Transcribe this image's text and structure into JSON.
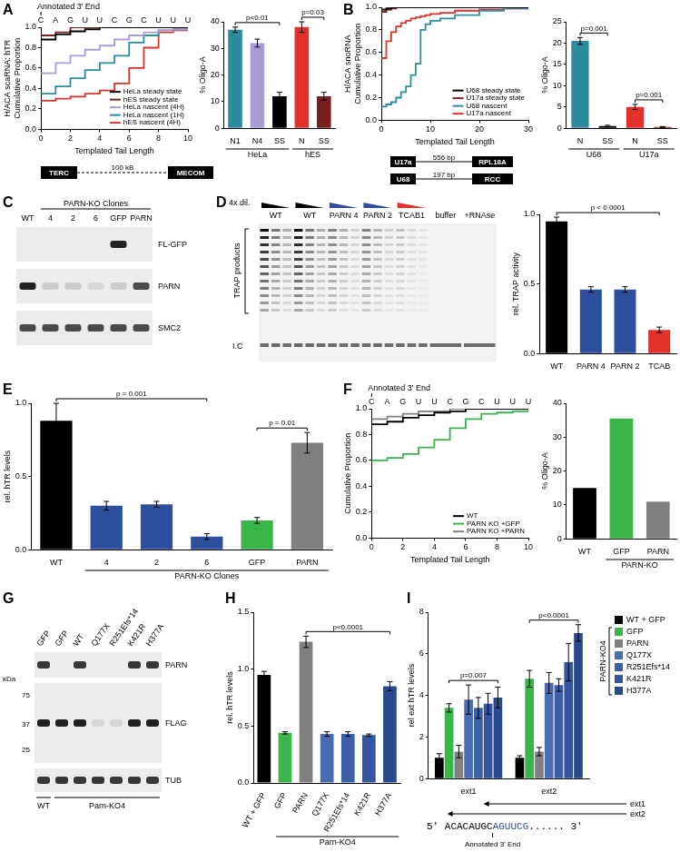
{
  "panel_labels": [
    "A",
    "B",
    "C",
    "D",
    "E",
    "F",
    "G",
    "H",
    "I"
  ],
  "chart_data": [
    {
      "type": "line",
      "xlabel": "Templated Tail Length",
      "ylabel": [
        "H/ACA scaRNA: hTR",
        "Cumulative Proportion"
      ],
      "x": [
        0,
        1,
        2,
        3,
        4,
        5,
        6,
        7,
        8,
        9,
        10
      ],
      "xlim": [
        0,
        10
      ],
      "xticks": [
        0,
        2,
        4,
        6,
        8,
        10
      ],
      "ylim": [
        0,
        1
      ],
      "yticks": [
        {
          "value": 0,
          "label": "0.0"
        },
        0.2,
        0.4,
        0.6,
        0.8,
        {
          "value": 1,
          "label": "1.0"
        }
      ],
      "grid": false,
      "legend": "lower right",
      "line_style": "steps",
      "annotations": {
        "label": "Annotated 3' End",
        "sequence": [
          "C",
          "A",
          "G",
          "U",
          "U",
          "C",
          "G",
          "C",
          "U",
          "U",
          "U"
        ]
      },
      "series": [
        {
          "name": "HeLa steady state",
          "color": "#000000",
          "values": [
            0.88,
            0.93,
            0.96,
            0.98,
            1,
            1,
            1,
            1,
            1,
            1,
            1
          ]
        },
        {
          "name": "hES steady state",
          "color": "#7a1f1f",
          "values": [
            0.92,
            0.95,
            1,
            1,
            1,
            1,
            1,
            1,
            1,
            1,
            1
          ]
        },
        {
          "name": "HeLa nascent (4H)",
          "color": "#a99bd3",
          "values": [
            0.55,
            0.65,
            0.72,
            0.78,
            0.82,
            0.88,
            0.92,
            0.95,
            0.97,
            0.98,
            1
          ]
        },
        {
          "name": "HeLa nascent (1H)",
          "color": "#2b8c9e",
          "values": [
            0.35,
            0.42,
            0.5,
            0.58,
            0.65,
            0.72,
            0.85,
            0.92,
            0.97,
            0.98,
            1
          ]
        },
        {
          "name": "hES nascent (4H)",
          "color": "#e2302b",
          "values": [
            0.28,
            0.3,
            0.32,
            0.35,
            0.38,
            0.45,
            0.6,
            0.8,
            0.95,
            0.97,
            1
          ]
        }
      ]
    },
    {
      "type": "bar",
      "ylabel": "% Oligo-A",
      "categories": [
        "N1",
        "N4",
        "SS",
        "N",
        "SS"
      ],
      "values": [
        37,
        32,
        12,
        38,
        12
      ],
      "errors": [
        1,
        1.5,
        1.5,
        2,
        1.5
      ],
      "colors": [
        "#2b8c9e",
        "#a99bd3",
        "#000000",
        "#e2302b",
        "#7a1f1f"
      ],
      "ylim": [
        0,
        40
      ],
      "yticks": [
        0,
        10,
        20,
        30,
        40
      ],
      "grid": false,
      "groups": [
        {
          "label": "HeLa",
          "from": 0,
          "to": 2
        },
        {
          "label": "hES",
          "from": 3,
          "to": 4
        }
      ],
      "annotations": [
        {
          "text": "p<0.01",
          "from": 0,
          "to": 2
        },
        {
          "text": "p=0.03",
          "from": 3,
          "to": 4
        }
      ]
    },
    {
      "type": "line",
      "xlabel": "Templated Tail Length",
      "ylabel": [
        "H/ACA snoRNA",
        "Cumulative Proportion"
      ],
      "x": [
        0,
        1,
        2,
        3,
        4,
        5,
        6,
        7,
        8,
        9,
        10,
        12,
        15,
        20,
        25,
        30
      ],
      "xlim": [
        0,
        30
      ],
      "xticks": [
        0,
        10,
        20,
        30
      ],
      "ylim": [
        0,
        1
      ],
      "yticks": [
        {
          "value": 0,
          "label": "0.0"
        },
        0.2,
        0.4,
        0.6,
        0.8,
        {
          "value": 1,
          "label": "1.0"
        }
      ],
      "grid": false,
      "legend": "lower right",
      "line_style": "steps",
      "series": [
        {
          "name": "U68 steady state",
          "color": "#000000",
          "values": [
            0.98,
            0.99,
            1,
            1,
            1,
            1,
            1,
            1,
            1,
            1,
            1,
            1,
            1,
            1,
            1,
            1
          ]
        },
        {
          "name": "U17a steady state",
          "color": "#7a1f1f",
          "values": [
            0.96,
            0.98,
            0.99,
            1,
            1,
            1,
            1,
            1,
            1,
            1,
            1,
            1,
            1,
            1,
            1,
            1
          ]
        },
        {
          "name": "U68 nascent",
          "color": "#2b8c9e",
          "values": [
            0.12,
            0.14,
            0.16,
            0.2,
            0.25,
            0.3,
            0.4,
            0.5,
            0.8,
            0.85,
            0.88,
            0.9,
            0.93,
            0.97,
            0.99,
            1
          ]
        },
        {
          "name": "U17a nascent",
          "color": "#e2302b",
          "values": [
            0.55,
            0.7,
            0.78,
            0.83,
            0.86,
            0.88,
            0.9,
            0.91,
            0.92,
            0.93,
            0.94,
            0.95,
            0.97,
            0.98,
            0.99,
            1
          ]
        }
      ]
    },
    {
      "type": "bar",
      "ylabel": "% Oligo-A",
      "categories": [
        "N",
        "SS",
        "N",
        "SS"
      ],
      "values": [
        20.5,
        0.5,
        5,
        0.3
      ],
      "errors": [
        0.8,
        0.2,
        0.6,
        0.1
      ],
      "colors": [
        "#2b8c9e",
        "#000000",
        "#e2302b",
        "#7a1f1f"
      ],
      "ylim": [
        0,
        25
      ],
      "yticks": [
        0,
        5,
        10,
        15,
        20,
        25
      ],
      "grid": false,
      "groups": [
        {
          "label": "U68",
          "from": 0,
          "to": 1
        },
        {
          "label": "U17a",
          "from": 2,
          "to": 3
        }
      ],
      "annotations": [
        {
          "text": "p=0.001",
          "from": 0,
          "to": 1
        },
        {
          "text": "p=0.001",
          "from": 2,
          "to": 3
        }
      ]
    },
    {
      "type": "bar",
      "ylabel": "rel. TRAP activity",
      "categories": [
        "WT",
        "PARN 4",
        "PARN 2",
        "TCAB"
      ],
      "values": [
        0.95,
        0.46,
        0.46,
        0.17
      ],
      "errors": [
        0.03,
        0.02,
        0.02,
        0.02
      ],
      "colors": [
        "#000000",
        "#2e4f9e",
        "#2e4f9e",
        "#e2302b"
      ],
      "ylim": [
        0,
        1
      ],
      "yticks": [
        {
          "value": 0,
          "label": "0.0"
        },
        0.5,
        {
          "value": 1,
          "label": "1.0"
        }
      ],
      "grid": false,
      "annotations": [
        {
          "text": "p < 0.0001",
          "from": 0,
          "to": 3
        }
      ]
    },
    {
      "type": "bar",
      "ylabel": "rel. hTR levels",
      "categories": [
        "WT",
        "4",
        "2",
        "6",
        "GFP",
        "PARN"
      ],
      "values": [
        0.88,
        0.3,
        0.31,
        0.09,
        0.2,
        0.73
      ],
      "errors": [
        0.12,
        0.03,
        0.02,
        0.02,
        0.02,
        0.07
      ],
      "colors": [
        "#000000",
        "#2e4f9e",
        "#2e4f9e",
        "#2e4f9e",
        "#3ab54a",
        "#808080"
      ],
      "ylim": [
        0,
        1
      ],
      "yticks": [
        {
          "value": 0,
          "label": "0.0"
        },
        0.5,
        {
          "value": 1,
          "label": "1.0"
        }
      ],
      "grid": false,
      "groups": [
        {
          "label": "PARN-KO Clones",
          "from": 1,
          "to": 5
        }
      ],
      "annotations": [
        {
          "text": "p = 0.001",
          "from": 0,
          "to": 3
        },
        {
          "text": "p = 0.01",
          "from": 4,
          "to": 5
        }
      ]
    },
    {
      "type": "line",
      "xlabel": "Templated Tail Length",
      "ylabel": "Cumulative Proportion",
      "x": [
        0,
        1,
        2,
        3,
        4,
        5,
        6,
        7,
        8,
        9,
        10
      ],
      "xlim": [
        0,
        10
      ],
      "xticks": [
        0,
        2,
        4,
        6,
        8,
        10
      ],
      "ylim": [
        0,
        1
      ],
      "yticks": [
        {
          "value": 0,
          "label": "0.0"
        },
        0.2,
        0.4,
        0.6,
        0.8,
        {
          "value": 1,
          "label": "1.0"
        }
      ],
      "grid": false,
      "legend": "lower right",
      "line_style": "steps",
      "annotations": {
        "label": "Annotated 3' End",
        "sequence": [
          "C",
          "A",
          "G",
          "U",
          "U",
          "C",
          "G",
          "C",
          "U",
          "U",
          "U"
        ]
      },
      "series": [
        {
          "name": "WT",
          "color": "#000000",
          "values": [
            0.88,
            0.9,
            0.93,
            0.95,
            0.97,
            0.98,
            1,
            1,
            1,
            1,
            1
          ]
        },
        {
          "name": "PARN KO +GFP",
          "color": "#3ab54a",
          "values": [
            0.6,
            0.62,
            0.65,
            0.7,
            0.76,
            0.85,
            0.92,
            0.96,
            0.97,
            0.98,
            1
          ]
        },
        {
          "name": "PARN KO +PARN",
          "color": "#808080",
          "values": [
            0.92,
            0.94,
            0.96,
            0.98,
            0.98,
            1,
            1,
            1,
            1,
            1,
            1
          ]
        }
      ]
    },
    {
      "type": "bar",
      "ylabel": "% Oligo-A",
      "categories": [
        "WT",
        "GFP",
        "PARN"
      ],
      "values": [
        15,
        35.5,
        11
      ],
      "colors": [
        "#000000",
        "#3ab54a",
        "#808080"
      ],
      "ylim": [
        0,
        40
      ],
      "yticks": [
        0,
        10,
        20,
        30,
        40
      ],
      "grid": false,
      "groups": [
        {
          "label": "PARN-KO",
          "from": 1,
          "to": 2
        }
      ]
    },
    {
      "type": "bar",
      "ylabel": "rel. hTR levels",
      "categories": [
        "WT + GFP",
        "GFP",
        "PARN",
        "Q177X",
        "R251Efs*14",
        "K421R",
        "H377A"
      ],
      "values": [
        0.95,
        0.44,
        1.24,
        0.43,
        0.43,
        0.42,
        0.85
      ],
      "errors": [
        0.03,
        0.01,
        0.05,
        0.02,
        0.02,
        0.01,
        0.04
      ],
      "colors": [
        "#000000",
        "#3ab54a",
        "#808080",
        "#4a6cb3",
        "#3d5fa8",
        "#34569f",
        "#2a4a8e"
      ],
      "ylim": [
        0,
        1.5
      ],
      "yticks": [
        {
          "value": 0,
          "label": "0.0"
        },
        0.5,
        {
          "value": 1,
          "label": "1.0"
        },
        1.5
      ],
      "grid": false,
      "groups": [
        {
          "label": "Parn-KO4",
          "from": 1,
          "to": 6
        }
      ],
      "annotations": [
        {
          "text": "p<0.0001",
          "from": 2,
          "to": 6
        }
      ]
    },
    {
      "type": "bar",
      "ylabel": "rel ext hTR levels",
      "categories": [
        "ext1",
        "ext2"
      ],
      "ylim": [
        0,
        8
      ],
      "yticks": [
        0,
        2,
        4,
        6,
        8
      ],
      "grid": false,
      "legend": "right",
      "legend_group": {
        "label": "PARN-KO4",
        "from": 1,
        "to": 6
      },
      "series": [
        {
          "name": "WT + GFP",
          "color": "#000000",
          "values": [
            1.0,
            1.0
          ],
          "errors": [
            0.2,
            0.1
          ]
        },
        {
          "name": "GFP",
          "color": "#3ab54a",
          "values": [
            3.4,
            4.8
          ],
          "errors": [
            0.2,
            0.4
          ]
        },
        {
          "name": "PARN",
          "color": "#808080",
          "values": [
            1.3,
            1.3
          ],
          "errors": [
            0.3,
            0.2
          ]
        },
        {
          "name": "Q177X",
          "color": "#4a6cb3",
          "values": [
            3.8,
            4.6
          ],
          "errors": [
            0.7,
            0.5
          ]
        },
        {
          "name": "R251Efs*14",
          "color": "#3d5fa8",
          "values": [
            3.4,
            4.5
          ],
          "errors": [
            0.5,
            0.3
          ]
        },
        {
          "name": "K421R",
          "color": "#34569f",
          "values": [
            3.6,
            5.6
          ],
          "errors": [
            0.5,
            0.9
          ]
        },
        {
          "name": "H377A",
          "color": "#2a4a8e",
          "values": [
            3.9,
            7.0
          ],
          "errors": [
            0.5,
            0.4
          ]
        }
      ],
      "annotations": [
        {
          "text": "p=0.007",
          "category": 0,
          "from": 1,
          "to": 6
        },
        {
          "text": "p<0.0001",
          "category": 1,
          "from": 1,
          "to": 6
        }
      ]
    }
  ],
  "blots": [
    {
      "title": "PARN-KO Clones",
      "lanes": [
        "WT",
        "4",
        "2",
        "6",
        "GFP",
        "PARN"
      ],
      "rows": [
        {
          "label": "FL-GFP",
          "bands": [
            0,
            0,
            0,
            0,
            1,
            0
          ]
        },
        {
          "label": "PARN",
          "bands": [
            1,
            0.15,
            0.15,
            0.1,
            0.15,
            0.8
          ]
        },
        {
          "label": "SMC2",
          "bands": [
            0.8,
            0.8,
            0.8,
            0.8,
            0.8,
            0.8
          ]
        }
      ]
    },
    {
      "lanes": [
        "GFP",
        "GFP",
        "WT",
        "Q177X",
        "R251Efs*14",
        "K421R",
        "H377A"
      ],
      "rows": [
        {
          "label": "PARN",
          "bands": [
            0.9,
            0,
            0.9,
            0,
            0,
            0.9,
            0.9
          ]
        },
        {
          "label": "FLAG",
          "bands": [
            1,
            1,
            1,
            0.1,
            0.1,
            1,
            1
          ]
        },
        {
          "label": "TUB",
          "bands": [
            0.9,
            0.9,
            0.9,
            0.9,
            0.9,
            0.9,
            0.9
          ]
        }
      ],
      "kda": {
        "label": "kDa",
        "markers": [
          75,
          37,
          25
        ]
      },
      "groups": [
        {
          "label": "WT",
          "from": 0,
          "to": 0
        },
        {
          "label": "Parn-KO4",
          "from": 1,
          "to": 6
        }
      ]
    }
  ],
  "gel": {
    "dilution_label": "4x dil.",
    "lanes": [
      "WT",
      "WT",
      "PARN 4",
      "PARN 2",
      "TCAB1",
      "buffer",
      "+RNAse"
    ],
    "triangle_colors": [
      "#000000",
      "#000000",
      "#2e4f9e",
      "#2e4f9e",
      "#e2302b",
      null,
      null
    ],
    "signal": [
      1,
      1,
      0.5,
      0.5,
      0.2,
      0,
      0
    ],
    "products_label": "TRAP products",
    "ic_label": "I.C"
  },
  "diagrams": {
    "A": {
      "genes": [
        "TERC",
        "MECOM"
      ],
      "distance": "100 kB"
    },
    "B": {
      "rows": [
        {
          "gene": "U17a",
          "distance": "556 bp",
          "host": "RPL18A"
        },
        {
          "gene": "U68",
          "distance": "197 bp",
          "host": "RCC"
        }
      ]
    },
    "I": {
      "prefix": "5' ACACAUGC",
      "highlight": "AGUUCG",
      "suffix": "...... 3'",
      "marker_label": "Annotated 3' End",
      "arrows": [
        "ext1",
        "ext2"
      ]
    }
  }
}
